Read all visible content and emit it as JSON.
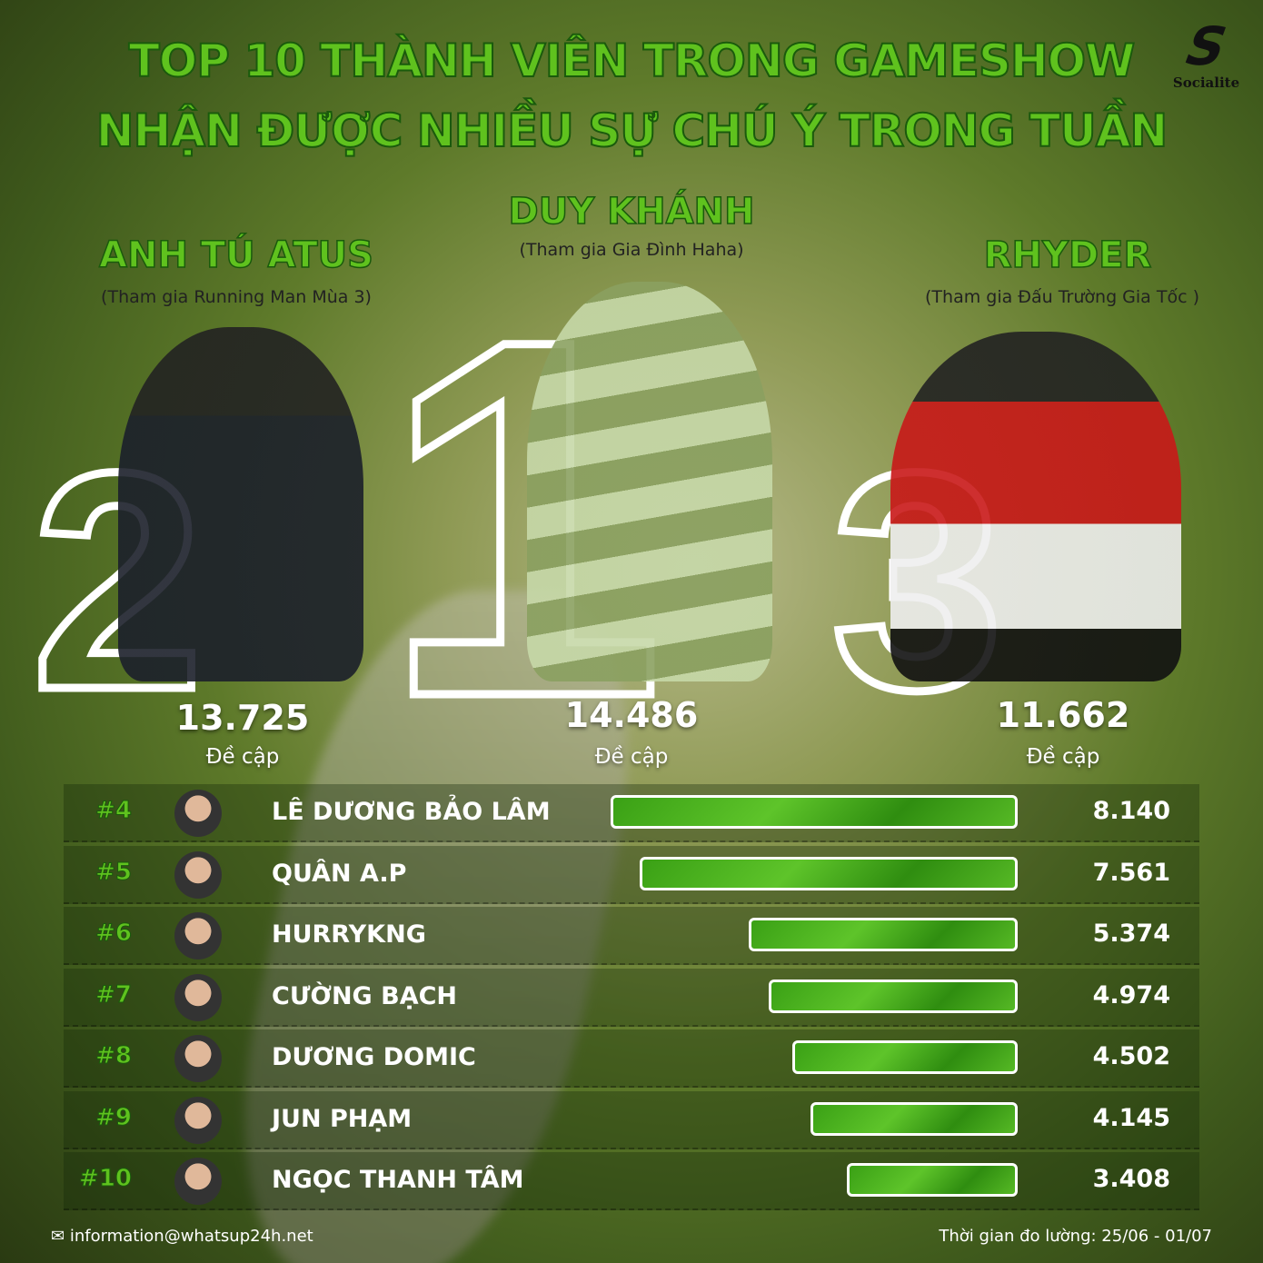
{
  "title_line1": "TOP 10 THÀNH VIÊN TRONG GAMESHOW",
  "title_line2": "NHẬN ĐƯỢC NHIỀU SỰ CHÚ Ý TRONG TUẦN",
  "logo": "Socialite",
  "colors": {
    "accent": "#5fc21e",
    "bar": "#3aa015",
    "text": "#ffffff"
  },
  "podium": [
    {
      "rank": "2",
      "name": "ANH TÚ ATUS",
      "show": "(Tham gia Running Man Mùa 3)",
      "value": "13.725",
      "unit": "Đề cập"
    },
    {
      "rank": "1",
      "name": "DUY KHÁNH",
      "show": "(Tham gia Gia Đình Haha)",
      "value": "14.486",
      "unit": "Đề cập"
    },
    {
      "rank": "3",
      "name": "RHYDER",
      "show": "(Tham gia Đấu Trường Gia Tốc )",
      "value": "11.662",
      "unit": "Đề cập"
    }
  ],
  "chart_data": {
    "type": "bar",
    "orientation": "horizontal",
    "categories": [
      "LÊ DƯƠNG BẢO LÂM",
      "QUÂN A.P",
      "HURRYKNG",
      "CƯỜNG BẠCH",
      "DƯƠNG DOMIC",
      "JUN PHẠM",
      "NGỌC THANH TÂM"
    ],
    "ranks": [
      "#4",
      "#5",
      "#6",
      "#7",
      "#8",
      "#9",
      "#10"
    ],
    "values": [
      8140,
      7561,
      5374,
      4974,
      4502,
      4145,
      3408
    ],
    "labels": [
      "8.140",
      "7.561",
      "5.374",
      "4.974",
      "4.502",
      "4.145",
      "3.408"
    ]
  },
  "footer": {
    "email": "information@whatsup24h.net",
    "period": "Thời gian đo lường: 25/06 - 01/07"
  }
}
